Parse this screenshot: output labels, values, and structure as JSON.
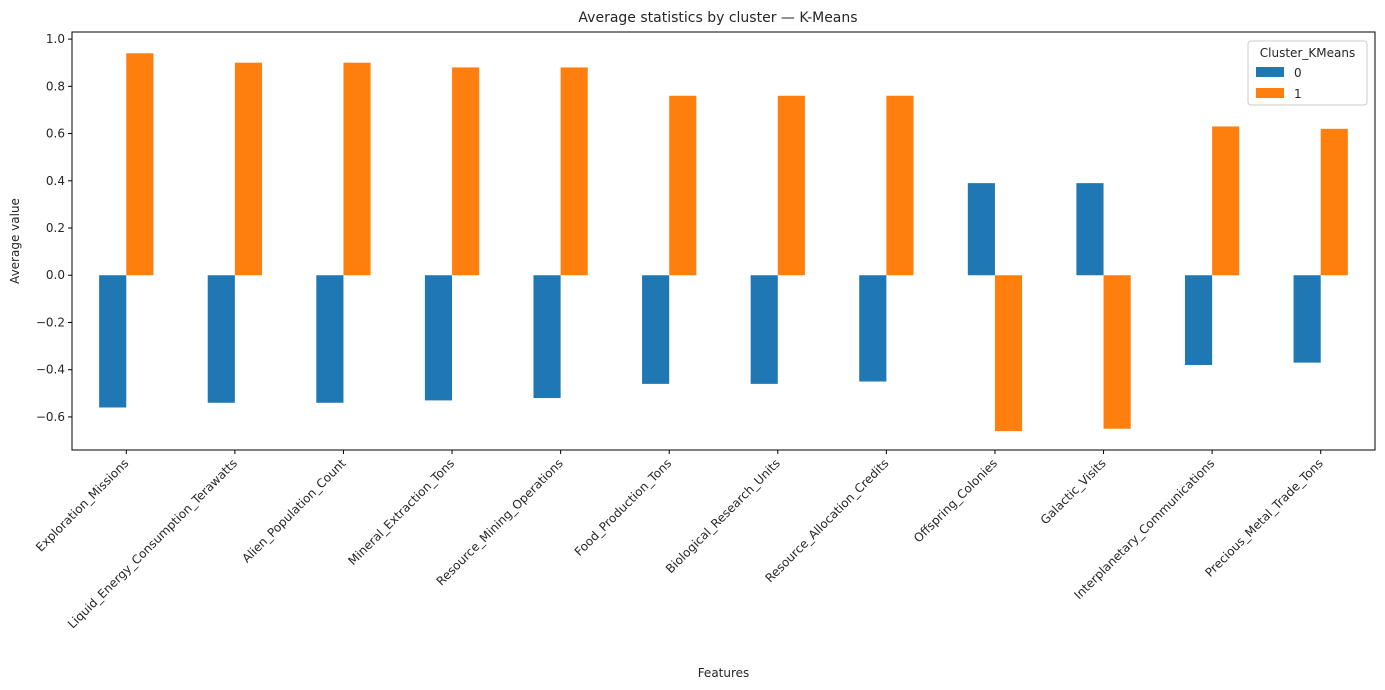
{
  "chart_data": {
    "type": "bar",
    "title": "Average statistics by cluster — K-Means",
    "xlabel": "Features",
    "ylabel": "Average value",
    "ylim": [
      -0.74,
      1.03
    ],
    "yticks": [
      -0.6,
      -0.4,
      -0.2,
      0.0,
      0.2,
      0.4,
      0.6,
      0.8,
      1.0
    ],
    "ytick_labels": [
      "−0.6",
      "−0.4",
      "−0.2",
      "0.0",
      "0.2",
      "0.4",
      "0.6",
      "0.8",
      "1.0"
    ],
    "grid": false,
    "legend": {
      "title": "Cluster_KMeans",
      "placement": "top-right"
    },
    "categories": [
      "Exploration_Missions",
      "Liquid_Energy_Consumption_Terawatts",
      "Alien_Population_Count",
      "Mineral_Extraction_Tons",
      "Resource_Mining_Operations",
      "Food_Production_Tons",
      "Biological_Research_Units",
      "Resource_Allocation_Credits",
      "Offspring_Colonies",
      "Galactic_Visits",
      "Interplanetary_Communications",
      "Precious_Metal_Trade_Tons"
    ],
    "series": [
      {
        "name": "0",
        "color": "#1f77b4",
        "values": [
          -0.56,
          -0.54,
          -0.54,
          -0.53,
          -0.52,
          -0.46,
          -0.46,
          -0.45,
          0.39,
          0.39,
          -0.38,
          -0.37
        ]
      },
      {
        "name": "1",
        "color": "#ff7f0e",
        "values": [
          0.94,
          0.9,
          0.9,
          0.88,
          0.88,
          0.76,
          0.76,
          0.76,
          -0.66,
          -0.65,
          0.63,
          0.62
        ]
      }
    ]
  }
}
